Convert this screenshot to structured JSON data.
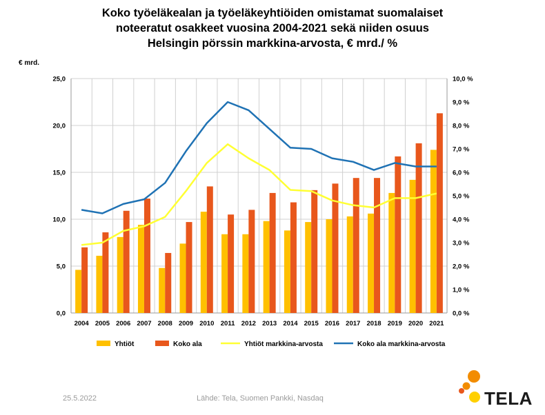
{
  "title_lines": [
    "Koko työeläkealan ja työeläkeyhtiöiden omistamat suomalaiset",
    "noteeratut osakkeet vuosina 2004-2021 sekä niiden osuus",
    "Helsingin pörssin markkina-arvosta, € mrd./ %"
  ],
  "unit_label": "€ mrd.",
  "footer": {
    "date": "25.5.2022",
    "source": "Lähde: Tela, Suomen Pankki, Nasdaq"
  },
  "logo_text": "TELA",
  "colors": {
    "yhtiot_bar": "#FFC000",
    "koko_ala_bar": "#E8571C",
    "yhtiot_line": "#FFFF33",
    "koko_ala_line": "#1F72B4",
    "gridline": "#D0D0D0",
    "logo_orange": "#F28C00",
    "logo_yellow": "#FFD000"
  },
  "chart_data": {
    "type": "bar",
    "categories": [
      "2004",
      "2005",
      "2006",
      "2007",
      "2008",
      "2009",
      "2010",
      "2011",
      "2012",
      "2013",
      "2014",
      "2015",
      "2016",
      "2017",
      "2018",
      "2019",
      "2020",
      "2021"
    ],
    "series": [
      {
        "name": "Yhtiöt",
        "type": "bar",
        "axis": "left",
        "values": [
          4.6,
          6.1,
          8.1,
          9.4,
          4.8,
          7.4,
          10.8,
          8.4,
          8.4,
          9.8,
          8.8,
          9.7,
          10.0,
          10.3,
          10.6,
          12.8,
          14.2,
          17.4
        ]
      },
      {
        "name": "Koko ala",
        "type": "bar",
        "axis": "left",
        "values": [
          7.0,
          8.6,
          10.9,
          12.2,
          6.4,
          9.7,
          13.5,
          10.5,
          11.0,
          12.8,
          11.8,
          13.1,
          13.8,
          14.4,
          14.4,
          16.7,
          18.1,
          21.3
        ]
      },
      {
        "name": "Yhtiöt markkina-arvosta",
        "type": "line",
        "axis": "right",
        "values": [
          2.9,
          3.0,
          3.5,
          3.7,
          4.1,
          5.2,
          6.4,
          7.2,
          6.6,
          6.1,
          5.25,
          5.2,
          4.8,
          4.6,
          4.5,
          4.9,
          4.9,
          5.1
        ]
      },
      {
        "name": "Koko ala markkina-arvosta",
        "type": "line",
        "axis": "right",
        "values": [
          4.4,
          4.25,
          4.65,
          4.85,
          5.55,
          6.9,
          8.1,
          9.0,
          8.65,
          7.85,
          7.05,
          7.0,
          6.6,
          6.45,
          6.1,
          6.4,
          6.25,
          6.25
        ]
      }
    ],
    "ylim_left": [
      0,
      25
    ],
    "yticks_left": [
      "0,0",
      "5,0",
      "10,0",
      "15,0",
      "20,0",
      "25,0"
    ],
    "ylim_right": [
      0,
      10
    ],
    "yticks_right": [
      "0,0 %",
      "1,0 %",
      "2,0 %",
      "3,0 %",
      "4,0 %",
      "5,0 %",
      "6,0 %",
      "7,0 %",
      "8,0 %",
      "9,0 %",
      "10,0 %"
    ],
    "grid": true,
    "legend_position": "bottom"
  }
}
